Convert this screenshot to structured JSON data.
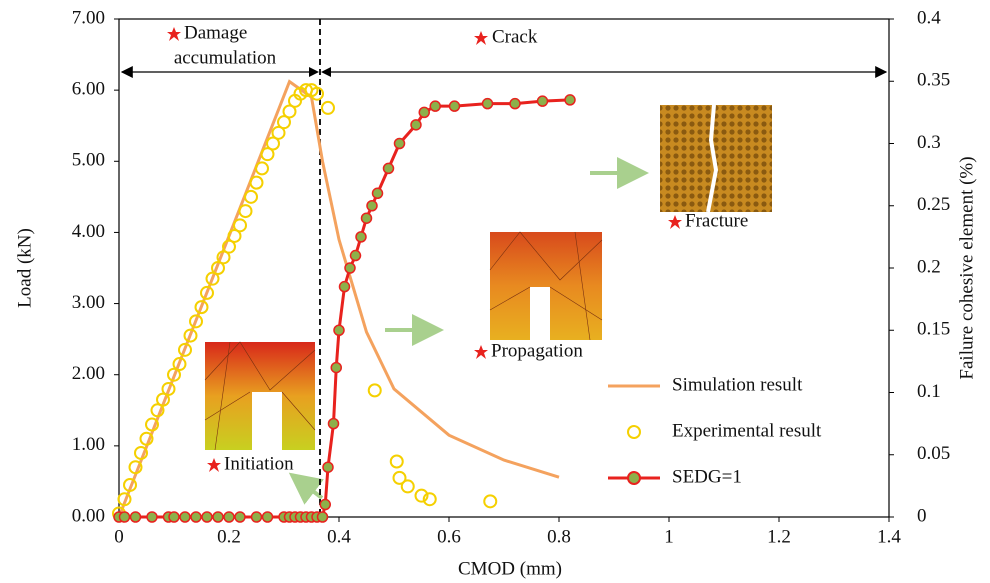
{
  "chart_data": {
    "type": "line",
    "x_label": "CMOD (mm)",
    "y_label": "Load (kN)",
    "y2_label": "Failure cohesive element  (%)",
    "xlim": [
      0,
      1.4
    ],
    "xticks": [
      0,
      0.2,
      0.4,
      0.6,
      0.8,
      1,
      1.2,
      1.4
    ],
    "ylim": [
      0,
      7
    ],
    "yticks": [
      {
        "value": 0,
        "label": "0.00"
      },
      {
        "value": 1,
        "label": "1.00"
      },
      {
        "value": 2,
        "label": "2.00"
      },
      {
        "value": 3,
        "label": "3.00"
      },
      {
        "value": 4,
        "label": "4.00"
      },
      {
        "value": 5,
        "label": "5.00"
      },
      {
        "value": 6,
        "label": "6.00"
      },
      {
        "value": 7,
        "label": "7.00"
      }
    ],
    "y2lim": [
      0,
      0.4
    ],
    "y2ticks": [
      0,
      0.05,
      0.1,
      0.15,
      0.2,
      0.25,
      0.3,
      0.35,
      0.4
    ],
    "legend": "lower right",
    "annotations": {
      "damage": [
        "Damage",
        "accumulation"
      ],
      "crack": "Crack",
      "fracture": "Fracture",
      "propagation": "Propagation",
      "initiation": "Initiation"
    },
    "series": [
      {
        "name": "Simulation result",
        "color": "#f4a25e",
        "mode": "line",
        "x": [
          0,
          0.31,
          0.35,
          0.37,
          0.4,
          0.45,
          0.5,
          0.6,
          0.7,
          0.8
        ],
        "values": [
          0,
          6.12,
          5.9,
          5.0,
          3.9,
          2.6,
          1.8,
          1.15,
          0.8,
          0.56
        ]
      },
      {
        "name": "Experimental result",
        "color": "#f5d000",
        "mode": "markers",
        "x": [
          0,
          0.01,
          0.02,
          0.03,
          0.04,
          0.05,
          0.06,
          0.07,
          0.08,
          0.09,
          0.1,
          0.11,
          0.12,
          0.13,
          0.14,
          0.15,
          0.16,
          0.17,
          0.18,
          0.19,
          0.2,
          0.21,
          0.22,
          0.23,
          0.24,
          0.25,
          0.26,
          0.27,
          0.28,
          0.29,
          0.3,
          0.31,
          0.32,
          0.33,
          0.34,
          0.35,
          0.36,
          0.38,
          0.465,
          0.505,
          0.51,
          0.525,
          0.55,
          0.565,
          0.675
        ],
        "values": [
          0.05,
          0.25,
          0.45,
          0.7,
          0.9,
          1.1,
          1.3,
          1.5,
          1.65,
          1.8,
          2.0,
          2.15,
          2.35,
          2.55,
          2.75,
          2.95,
          3.15,
          3.35,
          3.5,
          3.65,
          3.8,
          3.95,
          4.1,
          4.3,
          4.5,
          4.7,
          4.9,
          5.1,
          5.25,
          5.4,
          5.55,
          5.7,
          5.85,
          5.95,
          6.0,
          6.0,
          5.95,
          5.75,
          1.78,
          0.78,
          0.55,
          0.43,
          0.3,
          0.25,
          0.22
        ]
      },
      {
        "name": "SEDG=1",
        "color": "#e8221e",
        "marker_color": "#8db04a",
        "mode": "line+markers",
        "axis": "y2",
        "x": [
          0,
          0.01,
          0.03,
          0.06,
          0.09,
          0.1,
          0.12,
          0.14,
          0.16,
          0.18,
          0.2,
          0.22,
          0.25,
          0.27,
          0.3,
          0.31,
          0.32,
          0.33,
          0.34,
          0.35,
          0.36,
          0.37,
          0.375,
          0.38,
          0.39,
          0.395,
          0.4,
          0.41,
          0.42,
          0.43,
          0.44,
          0.45,
          0.46,
          0.47,
          0.49,
          0.51,
          0.54,
          0.555,
          0.575,
          0.61,
          0.67,
          0.72,
          0.77,
          0.82
        ],
        "values": [
          0,
          0,
          0,
          0,
          0,
          0,
          0,
          0,
          0,
          0,
          0,
          0,
          0,
          0,
          0,
          0,
          0,
          0,
          0,
          0,
          0,
          0,
          0.01,
          0.04,
          0.075,
          0.12,
          0.15,
          0.185,
          0.2,
          0.21,
          0.225,
          0.24,
          0.25,
          0.26,
          0.28,
          0.3,
          0.315,
          0.325,
          0.33,
          0.33,
          0.332,
          0.332,
          0.334,
          0.335
        ]
      }
    ]
  }
}
